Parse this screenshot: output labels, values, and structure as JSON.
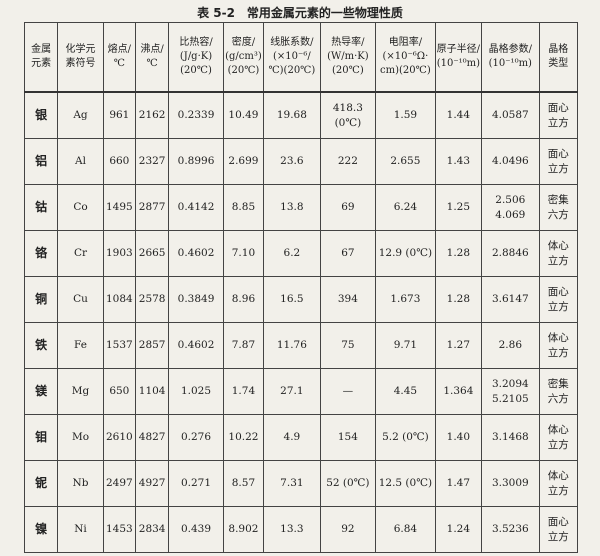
{
  "title": "表 5-2　常用金属元素的一些物理性质",
  "table": {
    "header": [
      [
        "金属",
        "元素"
      ],
      [
        "化学元",
        "素符号"
      ],
      [
        "熔点/",
        "℃"
      ],
      [
        "沸点/",
        "℃"
      ],
      [
        "比热容/",
        "(J/g·K)",
        "(20℃)"
      ],
      [
        "密度/",
        "(g/cm³)",
        "(20℃)"
      ],
      [
        "线胀系数/",
        "(×10⁻⁶/",
        "℃)(20℃)"
      ],
      [
        "热导率/",
        "(W/m·K)",
        "(20℃)"
      ],
      [
        "电阻率/",
        "(×10⁻⁶Ω·",
        "cm)(20℃)"
      ],
      [
        "原子半径/",
        "(10⁻¹⁰m)"
      ],
      [
        "晶格参数/",
        "(10⁻¹⁰m)"
      ],
      [
        "晶格",
        "类型"
      ]
    ],
    "rows": [
      [
        "银",
        "Ag",
        "961",
        "2162",
        "0.2339",
        "10.49",
        "19.68",
        [
          "418.3",
          "(0℃)"
        ],
        "1.59",
        "1.44",
        "4.0587",
        [
          "面心",
          "立方"
        ]
      ],
      [
        "铝",
        "Al",
        "660",
        "2327",
        "0.8996",
        "2.699",
        "23.6",
        "222",
        "2.655",
        "1.43",
        "4.0496",
        [
          "面心",
          "立方"
        ]
      ],
      [
        "钴",
        "Co",
        "1495",
        "2877",
        "0.4142",
        "8.85",
        "13.8",
        "69",
        "6.24",
        "1.25",
        [
          "2.506",
          "4.069"
        ],
        [
          "密集",
          "六方"
        ]
      ],
      [
        "铬",
        "Cr",
        "1903",
        "2665",
        "0.4602",
        "7.10",
        "6.2",
        "67",
        "12.9 (0℃)",
        "1.28",
        "2.8846",
        [
          "体心",
          "立方"
        ]
      ],
      [
        "铜",
        "Cu",
        "1084",
        "2578",
        "0.3849",
        "8.96",
        "16.5",
        "394",
        "1.673",
        "1.28",
        "3.6147",
        [
          "面心",
          "立方"
        ]
      ],
      [
        "铁",
        "Fe",
        "1537",
        "2857",
        "0.4602",
        "7.87",
        "11.76",
        "75",
        "9.71",
        "1.27",
        "2.86",
        [
          "体心",
          "立方"
        ]
      ],
      [
        "镁",
        "Mg",
        "650",
        "1104",
        "1.025",
        "1.74",
        "27.1",
        "—",
        "4.45",
        "1.364",
        [
          "3.2094",
          "5.2105"
        ],
        [
          "密集",
          "六方"
        ]
      ],
      [
        "钼",
        "Mo",
        "2610",
        "4827",
        "0.276",
        "10.22",
        "4.9",
        "154",
        "5.2 (0℃)",
        "1.40",
        "3.1468",
        [
          "体心",
          "立方"
        ]
      ],
      [
        "铌",
        "Nb",
        "2497",
        "4927",
        "0.271",
        "8.57",
        "7.31",
        "52 (0℃)",
        "12.5 (0℃)",
        "1.47",
        "3.3009",
        [
          "体心",
          "立方"
        ]
      ],
      [
        "镍",
        "Ni",
        "1453",
        "2834",
        "0.439",
        "8.902",
        "13.3",
        "92",
        "6.84",
        "1.24",
        "3.5236",
        [
          "面心",
          "立方"
        ]
      ]
    ]
  }
}
